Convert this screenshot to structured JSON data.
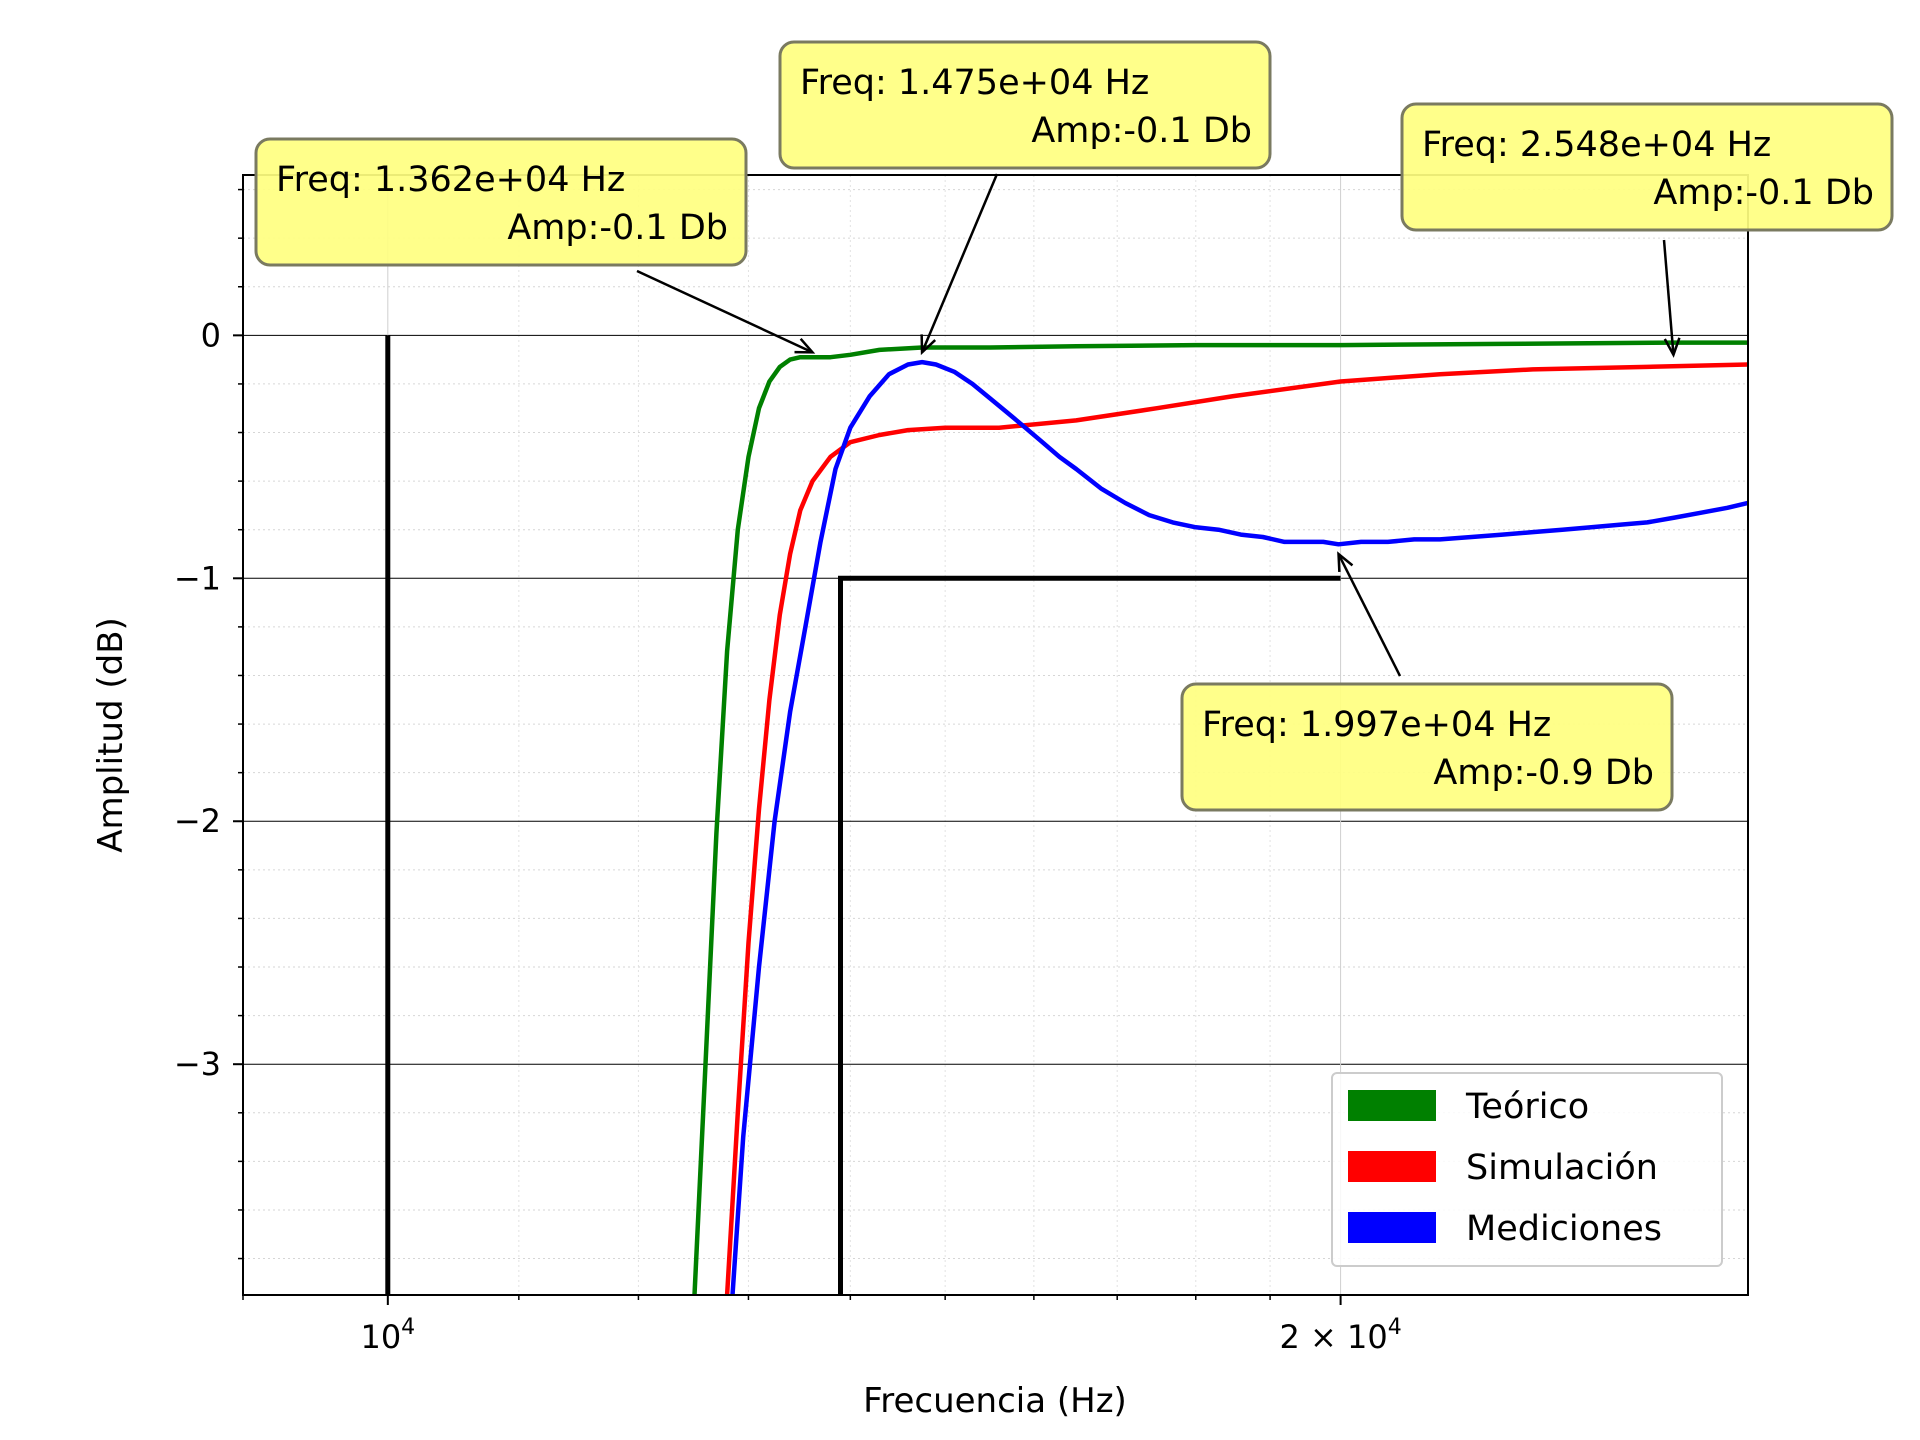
{
  "chart_data": {
    "type": "line",
    "title": "",
    "xlabel": "Frecuencia (Hz)",
    "ylabel": "Amplitud (dB)",
    "xscale": "log",
    "xlim": [
      9000,
      26900
    ],
    "ylim": [
      -3.95,
      0.66
    ],
    "grid": true,
    "x_tick_labels": [
      {
        "value": 10000,
        "base": "10",
        "exp": "4"
      },
      {
        "value": 20000,
        "base": "2 × 10",
        "exp": "4"
      }
    ],
    "y_tick_labels": [
      {
        "value": 0,
        "label": "0"
      },
      {
        "value": -1,
        "label": "−1"
      },
      {
        "value": -2,
        "label": "−2"
      },
      {
        "value": -3,
        "label": "−3"
      }
    ],
    "legend": {
      "placement": "lower-right",
      "entries": [
        {
          "label": "Teórico",
          "color": "#008000"
        },
        {
          "label": "Simulación",
          "color": "#ff0000"
        },
        {
          "label": "Mediciones",
          "color": "#0000ff"
        }
      ]
    },
    "series": [
      {
        "name": "Teórico",
        "color": "#008000",
        "x": [
          12500,
          12600,
          12700,
          12800,
          12900,
          13000,
          13100,
          13200,
          13300,
          13400,
          13500,
          13620,
          13800,
          14000,
          14300,
          14750,
          15500,
          16500,
          18000,
          20000,
          22500,
          25480,
          26900
        ],
        "y": [
          -3.95,
          -3.0,
          -2.05,
          -1.3,
          -0.8,
          -0.5,
          -0.3,
          -0.19,
          -0.13,
          -0.1,
          -0.09,
          -0.09,
          -0.09,
          -0.08,
          -0.06,
          -0.05,
          -0.05,
          -0.045,
          -0.04,
          -0.04,
          -0.035,
          -0.03,
          -0.03
        ]
      },
      {
        "name": "Simulación",
        "color": "#ff0000",
        "x": [
          12800,
          12900,
          13000,
          13100,
          13200,
          13300,
          13400,
          13500,
          13620,
          13800,
          14000,
          14300,
          14600,
          15000,
          15600,
          16500,
          17500,
          18500,
          20000,
          21500,
          23000,
          25000,
          26900
        ],
        "y": [
          -3.95,
          -3.2,
          -2.5,
          -1.95,
          -1.5,
          -1.15,
          -0.9,
          -0.72,
          -0.6,
          -0.5,
          -0.44,
          -0.41,
          -0.39,
          -0.38,
          -0.38,
          -0.35,
          -0.3,
          -0.25,
          -0.19,
          -0.16,
          -0.14,
          -0.13,
          -0.12
        ]
      },
      {
        "name": "Mediciones",
        "color": "#0000ff",
        "x": [
          12850,
          12950,
          13100,
          13250,
          13400,
          13550,
          13700,
          13850,
          14000,
          14200,
          14400,
          14600,
          14750,
          14900,
          15100,
          15300,
          15500,
          15700,
          15900,
          16100,
          16300,
          16500,
          16800,
          17100,
          17400,
          17700,
          18000,
          18300,
          18600,
          18900,
          19200,
          19500,
          19750,
          19970,
          20300,
          20700,
          21100,
          21500,
          22000,
          22500,
          23000,
          23500,
          24000,
          24500,
          25000,
          25500,
          26000,
          26500,
          26900
        ],
        "y": [
          -3.95,
          -3.3,
          -2.6,
          -2.0,
          -1.55,
          -1.2,
          -0.85,
          -0.55,
          -0.38,
          -0.25,
          -0.16,
          -0.12,
          -0.11,
          -0.12,
          -0.15,
          -0.2,
          -0.26,
          -0.32,
          -0.38,
          -0.44,
          -0.5,
          -0.55,
          -0.63,
          -0.69,
          -0.74,
          -0.77,
          -0.79,
          -0.8,
          -0.82,
          -0.83,
          -0.85,
          -0.85,
          -0.85,
          -0.86,
          -0.85,
          -0.85,
          -0.84,
          -0.84,
          -0.83,
          -0.82,
          -0.81,
          -0.8,
          -0.79,
          -0.78,
          -0.77,
          -0.75,
          -0.73,
          -0.71,
          -0.69
        ]
      }
    ],
    "limit_lines": [
      {
        "x": [
          10000,
          10000
        ],
        "y": [
          -3.95,
          0.0
        ],
        "color": "#000000"
      },
      {
        "x": [
          13900,
          13900,
          20000
        ],
        "y": [
          -3.95,
          -1.0,
          -1.0
        ],
        "color": "#000000"
      }
    ],
    "annotations": [
      {
        "line1": "Freq: 1.362e+04  Hz",
        "line2": "Amp:-0.1 Db",
        "x": 13620,
        "y": -0.07
      },
      {
        "line1": "Freq: 1.475e+04  Hz",
        "line2": "Amp:-0.1 Db",
        "x": 14750,
        "y": -0.07
      },
      {
        "line1": "Freq: 2.548e+04  Hz",
        "line2": "Amp:-0.1 Db",
        "x": 25480,
        "y": -0.08
      },
      {
        "line1": "Freq: 1.997e+04  Hz",
        "line2": "Amp:-0.9 Db",
        "x": 19970,
        "y": -0.9
      }
    ]
  }
}
